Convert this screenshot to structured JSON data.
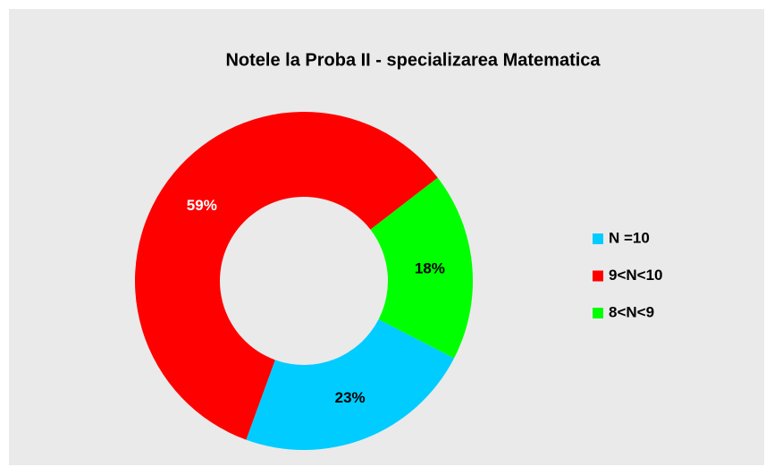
{
  "chart_data": {
    "type": "donut",
    "title": "Notele la Proba II - specializarea Matematica",
    "categories": [
      "N =10",
      "9<N<10",
      "8<N<9"
    ],
    "values": [
      23,
      59,
      18
    ],
    "value_labels": [
      "23%",
      "59%",
      "18%"
    ],
    "colors": [
      "#00ccff",
      "#ff0000",
      "#00ff00"
    ],
    "legend": "right"
  }
}
